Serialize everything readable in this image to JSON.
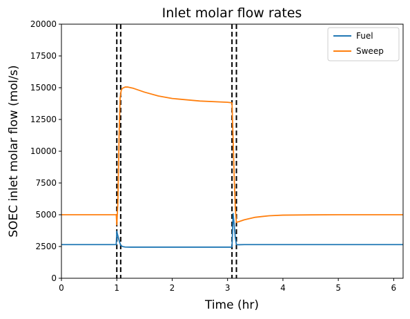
{
  "chart_data": {
    "type": "line",
    "title": "Inlet molar flow rates",
    "xlabel": "Time (hr)",
    "ylabel": "SOEC inlet molar flow (mol/s)",
    "xlim": [
      0,
      6.17
    ],
    "ylim": [
      0,
      20000
    ],
    "x_ticks": [
      0,
      1,
      2,
      3,
      4,
      5,
      6
    ],
    "x_tick_labels": [
      "0",
      "1",
      "2",
      "3",
      "4",
      "5",
      "6"
    ],
    "y_ticks": [
      0,
      2500,
      5000,
      7500,
      10000,
      12500,
      15000,
      17500,
      20000
    ],
    "y_tick_labels": [
      "0",
      "2500",
      "5000",
      "7500",
      "10000",
      "12500",
      "15000",
      "17500",
      "20000"
    ],
    "grid": false,
    "legend_position": "top-right",
    "vlines": {
      "x": [
        1.0,
        1.07,
        3.08,
        3.16
      ],
      "color": "#000000",
      "style": "dashed"
    },
    "series": [
      {
        "name": "Fuel",
        "color": "#1f77b4",
        "x": [
          0,
          0.5,
          0.99,
          1.0,
          1.01,
          1.03,
          1.05,
          1.07,
          1.1,
          1.15,
          1.25,
          1.5,
          2.0,
          2.5,
          3.0,
          3.07,
          3.08,
          3.09,
          3.1,
          3.12,
          3.14,
          3.16,
          3.2,
          3.3,
          3.5,
          4.0,
          5.0,
          6.17
        ],
        "values": [
          2650,
          2650,
          2650,
          3700,
          3500,
          3150,
          2850,
          2600,
          2500,
          2460,
          2450,
          2450,
          2450,
          2450,
          2450,
          2450,
          2500,
          3700,
          5100,
          4200,
          3200,
          2650,
          2640,
          2650,
          2650,
          2650,
          2650,
          2650
        ]
      },
      {
        "name": "Sweep",
        "color": "#ff7f0e",
        "x": [
          0,
          0.5,
          0.99,
          1.0,
          1.02,
          1.04,
          1.06,
          1.08,
          1.1,
          1.15,
          1.2,
          1.25,
          1.3,
          1.5,
          1.75,
          2.0,
          2.5,
          3.0,
          3.07,
          3.08,
          3.1,
          3.12,
          3.14,
          3.16,
          3.2,
          3.3,
          3.5,
          3.75,
          4.0,
          4.5,
          5.0,
          5.5,
          6.17
        ],
        "values": [
          5000,
          5000,
          5000,
          4200,
          6000,
          11000,
          14200,
          14800,
          14950,
          15050,
          15050,
          15000,
          14950,
          14650,
          14350,
          14150,
          13950,
          13850,
          13820,
          13800,
          11000,
          8000,
          5500,
          4400,
          4450,
          4600,
          4800,
          4920,
          4970,
          4990,
          5000,
          5000,
          5000
        ]
      }
    ]
  }
}
